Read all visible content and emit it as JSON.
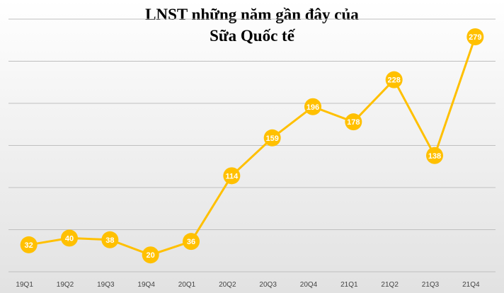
{
  "chart_data": {
    "type": "line",
    "title_lines": [
      "LNST những năm gần đây của",
      "Sữa Quốc tế"
    ],
    "xlabel": "",
    "ylabel": "",
    "categories": [
      "19Q1",
      "19Q2",
      "19Q3",
      "19Q4",
      "20Q1",
      "20Q2",
      "20Q3",
      "20Q4",
      "21Q1",
      "21Q2",
      "21Q3",
      "21Q4"
    ],
    "series": [
      {
        "values": [
          32,
          40,
          38,
          20,
          36,
          114,
          159,
          196,
          178,
          228,
          138,
          279
        ]
      }
    ],
    "ylim": [
      0,
      300
    ],
    "grid": true,
    "legend": "none",
    "colors": {
      "line": "#FFC000",
      "marker": "#FFC000",
      "label": "#FFFFFF",
      "grid": "#BFBFBF"
    }
  }
}
